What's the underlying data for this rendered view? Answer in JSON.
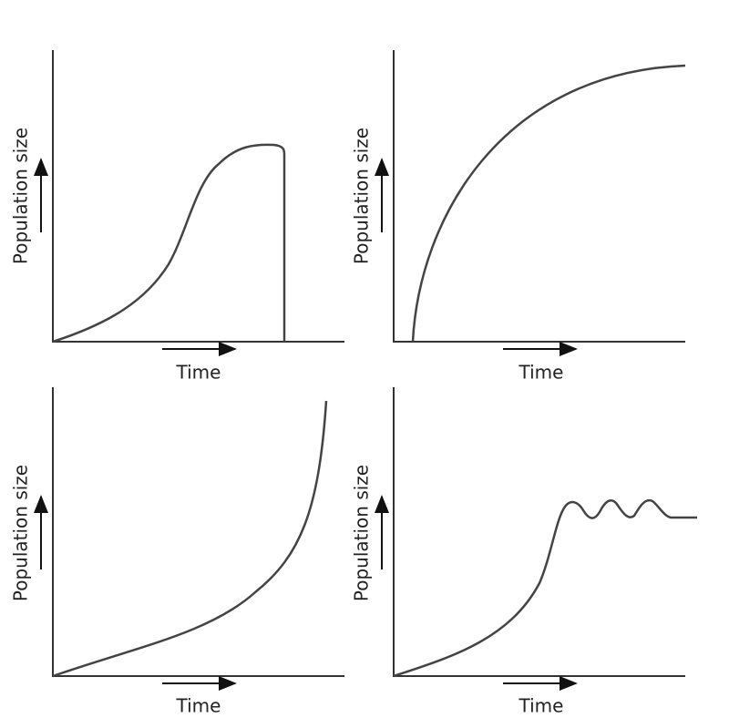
{
  "panels": [
    {
      "y_label": "Population size",
      "x_label": "Time"
    },
    {
      "y_label": "Population size",
      "x_label": "Time"
    },
    {
      "y_label": "Population size",
      "x_label": "Time"
    },
    {
      "y_label": "Population size",
      "x_label": "Time"
    }
  ]
}
